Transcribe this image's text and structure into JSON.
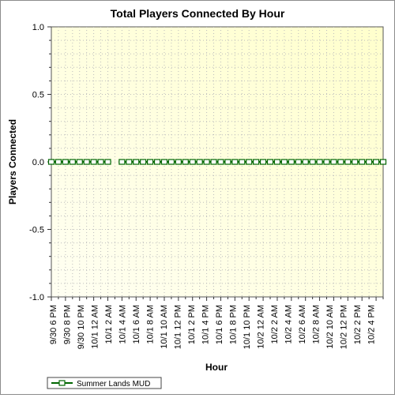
{
  "chart_data": {
    "type": "line",
    "title": "Total Players Connected By Hour",
    "xlabel": "Hour",
    "ylabel": "Players Connected",
    "ylim": [
      -1.0,
      1.0
    ],
    "y_ticks": [
      "1.0",
      "0.5",
      "0.0",
      "-0.5",
      "-1.0"
    ],
    "y_tick_values": [
      1.0,
      0.5,
      0.0,
      -0.5,
      -1.0
    ],
    "x_tick_labels": [
      "9/30 6 PM",
      "9/30 8 PM",
      "9/30 10 PM",
      "10/1 12 AM",
      "10/1 2 AM",
      "10/1 4 AM",
      "10/1 6 AM",
      "10/1 8 AM",
      "10/1 10 AM",
      "10/1 12 PM",
      "10/1 2 PM",
      "10/1 4 PM",
      "10/1 6 PM",
      "10/1 8 PM",
      "10/1 10 PM",
      "10/2 12 AM",
      "10/2 2 AM",
      "10/2 4 AM",
      "10/2 6 AM",
      "10/2 8 AM",
      "10/2 10 AM",
      "10/2 12 PM",
      "10/2 2 PM",
      "10/2 4 PM"
    ],
    "grid": true,
    "legend_position": "bottom-left",
    "series": [
      {
        "name": "Summer Lands MUD",
        "color": "#006600",
        "values": [
          0,
          0,
          0,
          0,
          0,
          0,
          0,
          0,
          0,
          null,
          0,
          0,
          0,
          0,
          0,
          0,
          0,
          0,
          0,
          0,
          0,
          0,
          0,
          0,
          0,
          0,
          0,
          0,
          0,
          0,
          0,
          0,
          0,
          0,
          0,
          0,
          0,
          0,
          0,
          0,
          0,
          0,
          0,
          0,
          0,
          0,
          0,
          0
        ]
      }
    ]
  }
}
